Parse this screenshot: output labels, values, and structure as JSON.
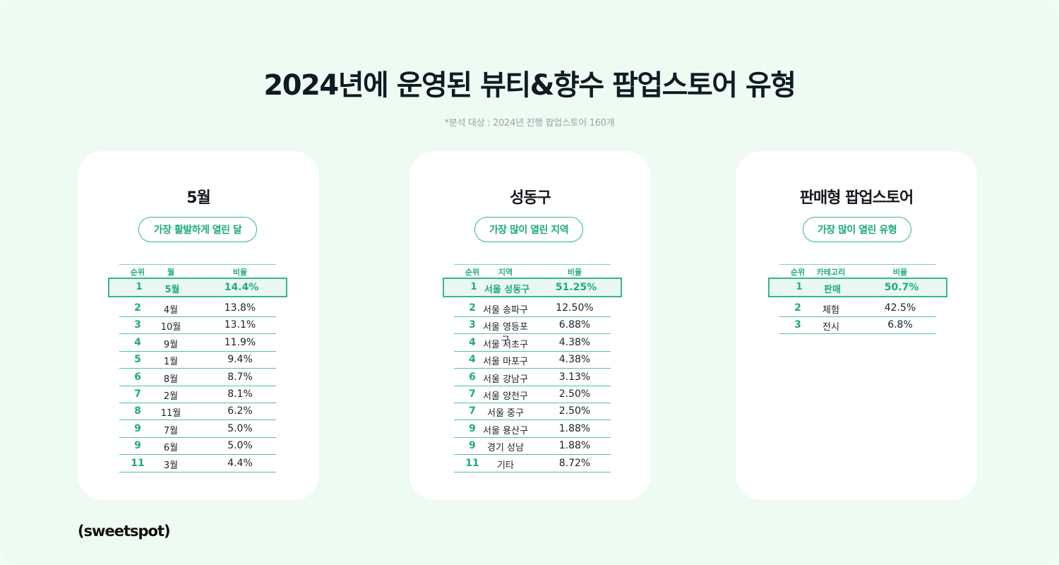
{
  "title": "2024년에 운영된 뷰티&향수 팝업스토어 유형",
  "subtitle": "*분석 대상 : 2024년 진행 팝업스토어 160개",
  "brand": "(sweetspot)",
  "colors": {
    "accent": "#1eaa80",
    "background": "#eefbf3",
    "card": "#ffffff"
  },
  "cards": [
    {
      "heading": "5월",
      "pill": "가장 활발하게 열린 달",
      "columns": [
        "순위",
        "월",
        "비율"
      ],
      "top": {
        "rank": "1",
        "name": "5월",
        "value": "14.4%"
      },
      "rows": [
        {
          "rank": "2",
          "name": "4월",
          "value": "13.8%"
        },
        {
          "rank": "3",
          "name": "10월",
          "value": "13.1%"
        },
        {
          "rank": "4",
          "name": "9월",
          "value": "11.9%"
        },
        {
          "rank": "5",
          "name": "1월",
          "value": "9.4%"
        },
        {
          "rank": "6",
          "name": "8월",
          "value": "8.7%"
        },
        {
          "rank": "7",
          "name": "2월",
          "value": "8.1%"
        },
        {
          "rank": "8",
          "name": "11월",
          "value": "6.2%"
        },
        {
          "rank": "9",
          "name": "7월",
          "value": "5.0%"
        },
        {
          "rank": "9",
          "name": "6월",
          "value": "5.0%"
        },
        {
          "rank": "11",
          "name": "3월",
          "value": "4.4%"
        }
      ]
    },
    {
      "heading": "성동구",
      "pill": "가장 많이 열린 지역",
      "columns": [
        "순위",
        "지역",
        "비율"
      ],
      "top": {
        "rank": "1",
        "name": "서울 성동구",
        "value": "51.25%"
      },
      "rows": [
        {
          "rank": "2",
          "name": "서울 송파구",
          "value": "12.50%"
        },
        {
          "rank": "3",
          "name": "서울 영등포구",
          "value": "6.88%"
        },
        {
          "rank": "4",
          "name": "서울 서초구",
          "value": "4.38%"
        },
        {
          "rank": "4",
          "name": "서울 마포구",
          "value": "4.38%"
        },
        {
          "rank": "6",
          "name": "서울 강남구",
          "value": "3.13%"
        },
        {
          "rank": "7",
          "name": "서울 양천구",
          "value": "2.50%"
        },
        {
          "rank": "7",
          "name": "서울 중구",
          "value": "2.50%"
        },
        {
          "rank": "9",
          "name": "서울 용산구",
          "value": "1.88%"
        },
        {
          "rank": "9",
          "name": "경기 성남",
          "value": "1.88%"
        },
        {
          "rank": "11",
          "name": "기타",
          "value": "8.72%"
        }
      ]
    },
    {
      "heading": "판매형 팝업스토어",
      "pill": "가장 많이 열린 유형",
      "columns": [
        "순위",
        "카테고리",
        "비율"
      ],
      "top": {
        "rank": "1",
        "name": "판매",
        "value": "50.7%"
      },
      "rows": [
        {
          "rank": "2",
          "name": "체험",
          "value": "42.5%"
        },
        {
          "rank": "3",
          "name": "전시",
          "value": "6.8%"
        }
      ]
    }
  ]
}
